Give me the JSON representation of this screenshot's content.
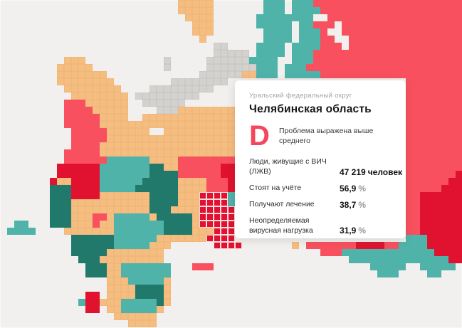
{
  "card": {
    "district": "Уральский федеральный округ",
    "region": "Челябинская область",
    "grade": {
      "letter": "D",
      "description": "Проблема выражена выше среднего"
    },
    "stats": [
      {
        "label": "Люди, живущие с ВИЧ (ЛЖВ)",
        "value": "47 219",
        "unit": "человек",
        "unit_muted": false
      },
      {
        "label": "Стоят на учёте",
        "value": "56,9",
        "unit": "%",
        "unit_muted": true
      },
      {
        "label": "Получают лечение",
        "value": "38,7",
        "unit": "%",
        "unit_muted": true
      },
      {
        "label": "Неопределяемая вирусная нагрузка",
        "value": "31,9",
        "unit": "%",
        "unit_muted": true
      }
    ]
  },
  "map": {
    "background": "#F2F0EE",
    "highlight_border": "#FFFFFF",
    "cell": 10,
    "cols": 65,
    "rows": 46,
    "palette": {
      "o": "#F6BD80",
      "r": "#F8505E",
      "R": "#E0122F",
      "t": "#4FB3AA",
      "T": "#20796B",
      "g": "#D4D2CF",
      "h": "#E0122F"
    },
    "legend_names": {
      "o": "orange-region",
      "r": "coral-region",
      "R": "crimson-region",
      "t": "teal-region",
      "T": "dark-teal-region",
      "g": "gray-region",
      "h": "highlighted-region-chelyabinsk"
    },
    "grid": [
      ".........................ooooo.......ttt.tttrrrrrrrrrrrrrrrrrrrrr",
      ".........................ooooo.......ttt.ttttrrrrrrrrrrrrrrrrrrrr",
      "..........................oooo......tttttttt..rrrrrrrrrrrrrrrrrrr",
      "...........................ooo......ttttt.ttrrr.rrrrrrrrrrrrrrrrr",
      "...........................ooo.......tttt.tttr..rrrrrrrrrrrrrrrrr",
      "............................o........tttt.tttrr..rrrrrrrrrrrrrrrr",
      "..............................gg....tttt.ttttrrr.rrrrrrrrrrrrrrrr",
      "..............................ggggg.tttt.tttrrrrrrrrrrrrrrrrrrrrr",
      ".........ooo...........g.....ggggggtttt..tttrrrrrrrrrrrrrrrrrrrrr",
      "........ooooo..........g.....gggggggttt.tttrrrrrrrrrrrrrrrrrrrrrr",
      "........ooooooo.............ggggggoottt.tttttrrrrrrrrrrrrrrrrrrrr",
      "........oooooooo........gggggggg.........................rrrrrrrr",
      ".........oooooooo....ggggggggg...........................rrrrrrrr",
      "..........oooooooo.ggggggggg.............................rrrrrrrr",
      ".........rrroooooo..gggggg...............................rrrrrrrr",
      ".........rrrrooooo....gggoooooooo........................rrrrrrrr",
      ".........rrrrroooo..ooooooooooooo........................rrrrrrrr",
      ".........rrrrrooooooooooooooooooo........................rrrrrrrr",
      "..........rrrrroooooo..oooooooooo........................rrrrrrrr",
      "..........rrrrroooooooooooooooooo........................rrrrrrrr",
      "..........rrrrooooooooooooooooooo........................rrrrrrrr",
      ".........rrrrrooooooooooooooooooo........................rrrrrrrr",
      ".........rrrrrrttttttoooorrrrrrrr........................rrrrrrrr",
      "........RRRRRRtttttttTToorrrrrrRR........................rrrrrrrr",
      "........RRRRRRtttttttTTTTrrrrrrRR........................rrrrrrrR",
      ".......RooRRRRttttttTTTTToooorrrR........................rrrrrrRR",
      ".......TTTRRRRtttttTTTTTToooorrrR........................rrrrrRRR",
      ".......TTTRRRRoooooooTTTTooohhhht........................rrRRRRRR",
      ".......TTToooooooooooTTTTooohhhht........................rrRRRRRR",
      ".......TTToooooooooooTTToooohhhhh........................rrRRRRRR",
      ".......TTTooorrotttttoTTTTTohhhhh........................rrRRRRRR",
      "..tt...TTTooorootttttttTTTTohhhhh........................rrRRRRRR",
      ".tttt....oooooootttttttTTTTooohhh........................rrRRRRRR",
      "..........TTTTTTttttttooooooohhhh........................tttRRRRR",
      "..........TTTTTTtttttooo......hhhh.......o.rrrrrrrRRRRrrttttRRRRR",
      "..........TTTTToooooooo......................rrrtttttttttttttRRRR",
      "...........TTTooooooooo..........................ttttttttttttttRR",
      "............TTToottttttt...rrr......................ttttt..ttttt.",
      "............TTToottttttt.............................ttt....tt...",
      "...............ooottttto.........................................",
      "...............ooooTTTTo.........................................",
      "............RR.ooooTTTTo.........................................",
      "...........tRRoootttttTo.........................................",
      "............RR.oottttto..........................................",
      "................oooooo...........................................",
      "..................oooo............................................"
    ]
  }
}
